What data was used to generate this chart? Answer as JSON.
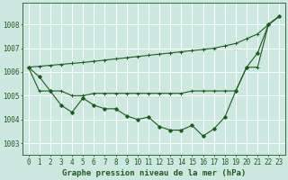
{
  "title": "Graphe pression niveau de la mer (hPa)",
  "bg_color": "#cce8e0",
  "grid_color": "#ffffff",
  "line_color": "#1e5c1e",
  "ylim": [
    1002.5,
    1008.9
  ],
  "xlim": [
    -0.5,
    23.5
  ],
  "yticks": [
    1003,
    1004,
    1005,
    1006,
    1007,
    1008
  ],
  "xticks": [
    0,
    1,
    2,
    3,
    4,
    5,
    6,
    7,
    8,
    9,
    10,
    11,
    12,
    13,
    14,
    15,
    16,
    17,
    18,
    19,
    20,
    21,
    22,
    23
  ],
  "series_bottom": [
    1006.2,
    1005.8,
    1005.2,
    1004.6,
    1004.3,
    1004.9,
    1004.6,
    1004.45,
    1004.45,
    1004.15,
    1004.0,
    1004.1,
    1003.7,
    1003.55,
    1003.55,
    1003.75,
    1003.3,
    1003.6,
    1004.1,
    1005.2,
    1006.2,
    1006.8,
    1008.0,
    1008.35
  ],
  "series_middle": [
    1006.2,
    1005.2,
    1005.2,
    1005.2,
    1005.0,
    1005.0,
    1005.1,
    1005.1,
    1005.1,
    1005.1,
    1005.1,
    1005.1,
    1005.1,
    1005.1,
    1005.1,
    1005.2,
    1005.2,
    1005.2,
    1005.2,
    1005.2,
    1006.2,
    1006.2,
    1008.0,
    1008.35
  ],
  "series_top": [
    1006.2,
    1006.24,
    1006.28,
    1006.32,
    1006.36,
    1006.4,
    1006.45,
    1006.5,
    1006.55,
    1006.6,
    1006.65,
    1006.7,
    1006.75,
    1006.8,
    1006.85,
    1006.9,
    1006.95,
    1007.0,
    1007.1,
    1007.2,
    1007.4,
    1007.6,
    1008.0,
    1008.35
  ],
  "tick_fontsize": 5.5,
  "title_fontsize": 6.5
}
